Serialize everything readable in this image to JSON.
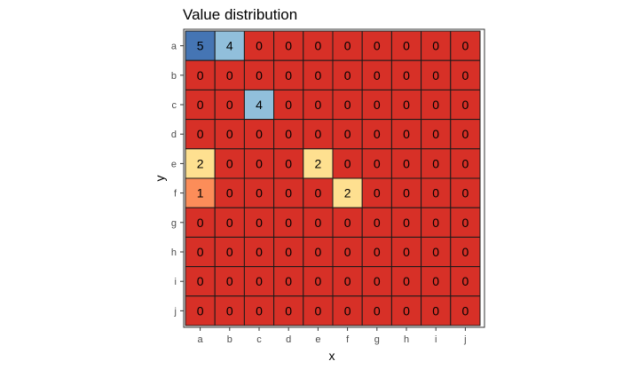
{
  "chart_data": {
    "type": "heatmap",
    "title": "Value distribution",
    "xlabel": "x",
    "ylabel": "y",
    "x": [
      "a",
      "b",
      "c",
      "d",
      "e",
      "f",
      "g",
      "h",
      "i",
      "j"
    ],
    "y": [
      "a",
      "b",
      "c",
      "d",
      "e",
      "f",
      "g",
      "h",
      "i",
      "j"
    ],
    "values": [
      [
        5,
        4,
        0,
        0,
        0,
        0,
        0,
        0,
        0,
        0
      ],
      [
        0,
        0,
        0,
        0,
        0,
        0,
        0,
        0,
        0,
        0
      ],
      [
        0,
        0,
        4,
        0,
        0,
        0,
        0,
        0,
        0,
        0
      ],
      [
        0,
        0,
        0,
        0,
        0,
        0,
        0,
        0,
        0,
        0
      ],
      [
        2,
        0,
        0,
        0,
        2,
        0,
        0,
        0,
        0,
        0
      ],
      [
        1,
        0,
        0,
        0,
        0,
        2,
        0,
        0,
        0,
        0
      ],
      [
        0,
        0,
        0,
        0,
        0,
        0,
        0,
        0,
        0,
        0
      ],
      [
        0,
        0,
        0,
        0,
        0,
        0,
        0,
        0,
        0,
        0
      ],
      [
        0,
        0,
        0,
        0,
        0,
        0,
        0,
        0,
        0,
        0
      ],
      [
        0,
        0,
        0,
        0,
        0,
        0,
        0,
        0,
        0,
        0
      ]
    ],
    "colors": {
      "0": "#d73027",
      "1": "#fc8d59",
      "2": "#fee090",
      "4": "#91bfdb",
      "5": "#4575b4"
    },
    "grid": false,
    "legend": "none"
  }
}
